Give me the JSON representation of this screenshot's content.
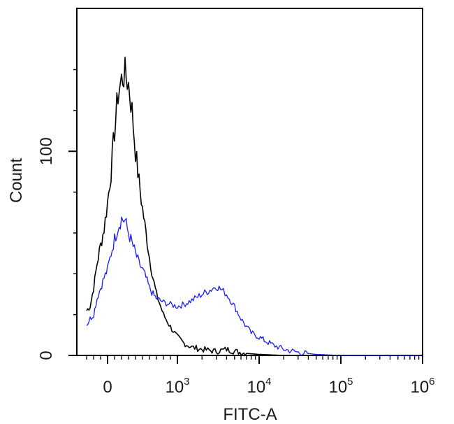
{
  "chart_data": {
    "type": "line",
    "title": "",
    "xlabel": "FITC-A",
    "ylabel": "Count",
    "x_scale": "biexponential",
    "xlim": [
      -300,
      1000000
    ],
    "ylim": [
      0,
      170
    ],
    "x_tick_labels": [
      {
        "base": "0",
        "exp": ""
      },
      {
        "base": "10",
        "exp": "3"
      },
      {
        "base": "10",
        "exp": "4"
      },
      {
        "base": "10",
        "exp": "5"
      },
      {
        "base": "10",
        "exp": "6"
      }
    ],
    "y_tick_labels": [
      "0",
      "100"
    ],
    "y_ticks": [
      0,
      100
    ],
    "grid": false,
    "legend": "none",
    "series": [
      {
        "color": "#000000",
        "points": [
          [
            -300,
            22
          ],
          [
            -250,
            24
          ],
          [
            -200,
            33
          ],
          [
            -150,
            45
          ],
          [
            -100,
            54
          ],
          [
            -50,
            62
          ],
          [
            0,
            75
          ],
          [
            50,
            90
          ],
          [
            100,
            110
          ],
          [
            150,
            128
          ],
          [
            200,
            135
          ],
          [
            250,
            138
          ],
          [
            300,
            133
          ],
          [
            350,
            120
          ],
          [
            400,
            100
          ],
          [
            450,
            85
          ],
          [
            500,
            72
          ],
          [
            550,
            60
          ],
          [
            600,
            48
          ],
          [
            650,
            38
          ],
          [
            700,
            30
          ],
          [
            800,
            20
          ],
          [
            900,
            14
          ],
          [
            1000,
            9
          ],
          [
            1200,
            6
          ],
          [
            1500,
            4
          ],
          [
            2000,
            3
          ],
          [
            3000,
            2
          ],
          [
            4000,
            3
          ],
          [
            5000,
            2
          ],
          [
            7000,
            1
          ],
          [
            10000,
            0.5
          ],
          [
            20000,
            0
          ],
          [
            1000000,
            0
          ]
        ]
      },
      {
        "color": "#1a1aff",
        "points": [
          [
            -300,
            15
          ],
          [
            -250,
            18
          ],
          [
            -200,
            20
          ],
          [
            -150,
            28
          ],
          [
            -100,
            33
          ],
          [
            -50,
            38
          ],
          [
            0,
            42
          ],
          [
            50,
            50
          ],
          [
            100,
            57
          ],
          [
            150,
            63
          ],
          [
            200,
            67
          ],
          [
            250,
            66
          ],
          [
            300,
            60
          ],
          [
            350,
            55
          ],
          [
            400,
            50
          ],
          [
            450,
            45
          ],
          [
            500,
            42
          ],
          [
            550,
            38
          ],
          [
            600,
            33
          ],
          [
            650,
            30
          ],
          [
            700,
            28
          ],
          [
            800,
            26
          ],
          [
            900,
            25
          ],
          [
            1000,
            24
          ],
          [
            1200,
            25
          ],
          [
            1500,
            27
          ],
          [
            2000,
            30
          ],
          [
            2500,
            32
          ],
          [
            3000,
            34
          ],
          [
            3500,
            32
          ],
          [
            4000,
            30
          ],
          [
            5000,
            24
          ],
          [
            6000,
            18
          ],
          [
            7000,
            14
          ],
          [
            8000,
            11
          ],
          [
            10000,
            9
          ],
          [
            12000,
            7
          ],
          [
            15000,
            5
          ],
          [
            20000,
            3
          ],
          [
            30000,
            1.5
          ],
          [
            50000,
            0.5
          ],
          [
            100000,
            0
          ],
          [
            1000000,
            0
          ]
        ]
      }
    ]
  }
}
